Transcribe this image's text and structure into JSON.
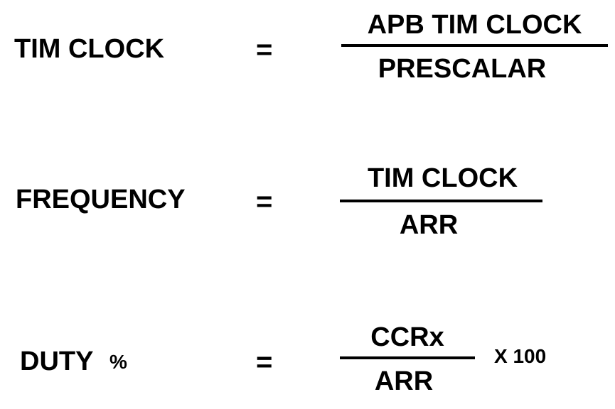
{
  "equations": [
    {
      "lhs": "TIM CLOCK",
      "equals": "=",
      "numerator": "APB TIM CLOCK",
      "denominator": "PRESCALAR"
    },
    {
      "lhs": "FREQUENCY",
      "equals": "=",
      "numerator": "TIM CLOCK",
      "denominator": "ARR"
    },
    {
      "lhs": "DUTY",
      "lhs_suffix": "%",
      "equals": "=",
      "numerator": "CCRx",
      "denominator": "ARR",
      "multiplier": "X 100"
    }
  ]
}
